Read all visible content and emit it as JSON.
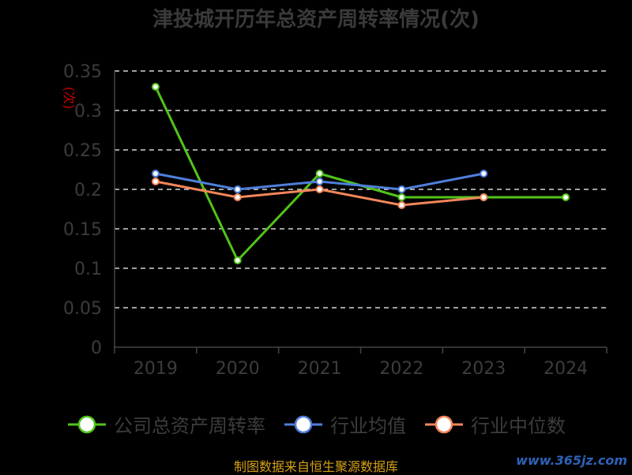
{
  "chart_data": {
    "type": "line",
    "title": "津投城开历年总资产周转率情况(次)",
    "ylabel": "(次)",
    "xlabel": "",
    "categories": [
      "2019",
      "2020",
      "2021",
      "2022",
      "2023",
      "2024"
    ],
    "ylim": [
      0,
      0.35
    ],
    "yticks": [
      "0",
      "0.05",
      "0.1",
      "0.15",
      "0.2",
      "0.25",
      "0.3",
      "0.35"
    ],
    "grid": true,
    "legend_position": "bottom",
    "series": [
      {
        "name": "公司总资产周转率",
        "color": "#52c41a",
        "values": [
          0.33,
          0.11,
          0.22,
          0.19,
          0.19,
          0.19
        ]
      },
      {
        "name": "行业均值",
        "color": "#4f7fdc",
        "values": [
          0.22,
          0.2,
          0.21,
          0.2,
          0.22,
          null
        ]
      },
      {
        "name": "行业中位数",
        "color": "#f4865a",
        "values": [
          0.21,
          0.19,
          0.2,
          0.18,
          0.19,
          null
        ]
      }
    ]
  },
  "footer": {
    "source": "制图数据来自恒生聚源数据库",
    "watermark": "www.365jz.com"
  }
}
